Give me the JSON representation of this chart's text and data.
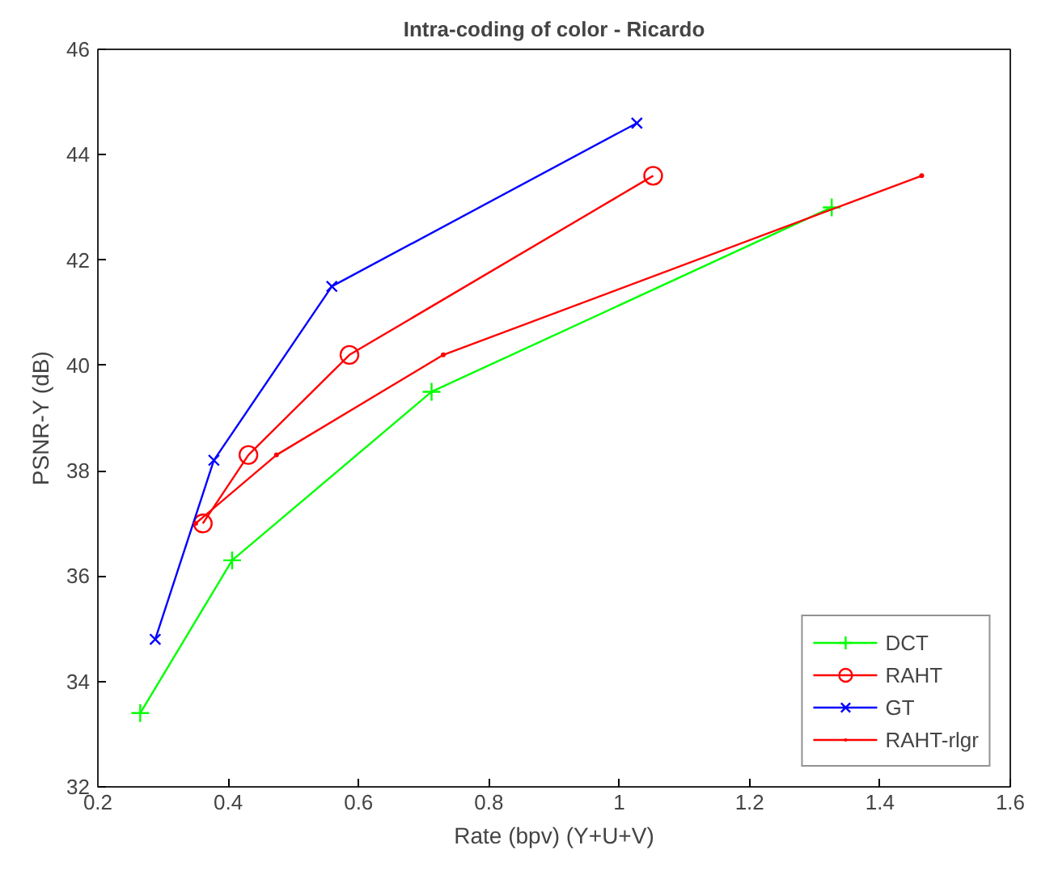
{
  "chart_data": {
    "type": "line",
    "title": "Intra-coding of color - Ricardo",
    "xlabel": "Rate (bpv) (Y+U+V)",
    "ylabel": "PSNR-Y (dB)",
    "xlim": [
      0.2,
      1.6
    ],
    "ylim": [
      32,
      46
    ],
    "xticks": [
      0.2,
      0.4,
      0.6,
      0.8,
      1,
      1.2,
      1.4,
      1.6
    ],
    "yticks": [
      32,
      34,
      36,
      38,
      40,
      42,
      44,
      46
    ],
    "grid": false,
    "legend": "bottom right",
    "line_style": "solid",
    "series": [
      {
        "name": "DCT",
        "color": "#00ff00",
        "marker": "cross",
        "x": [
          0.265,
          0.406,
          0.712,
          1.326
        ],
        "values": [
          33.4,
          36.3,
          39.5,
          43.0
        ]
      },
      {
        "name": "RAHT",
        "color": "#ff0000",
        "marker": "circle",
        "x": [
          0.361,
          0.431,
          0.586,
          1.052
        ],
        "values": [
          37.0,
          38.3,
          40.2,
          43.6
        ]
      },
      {
        "name": "GT",
        "color": "#0000ff",
        "marker": "x",
        "x": [
          0.288,
          0.378,
          0.559,
          1.027
        ],
        "values": [
          34.8,
          38.2,
          41.5,
          44.6
        ]
      },
      {
        "name": "RAHT-rlgr",
        "color": "#ff0000",
        "marker": "point",
        "x": [
          0.35,
          0.474,
          0.73,
          1.464
        ],
        "values": [
          37.0,
          38.3,
          40.2,
          43.6
        ]
      }
    ]
  }
}
